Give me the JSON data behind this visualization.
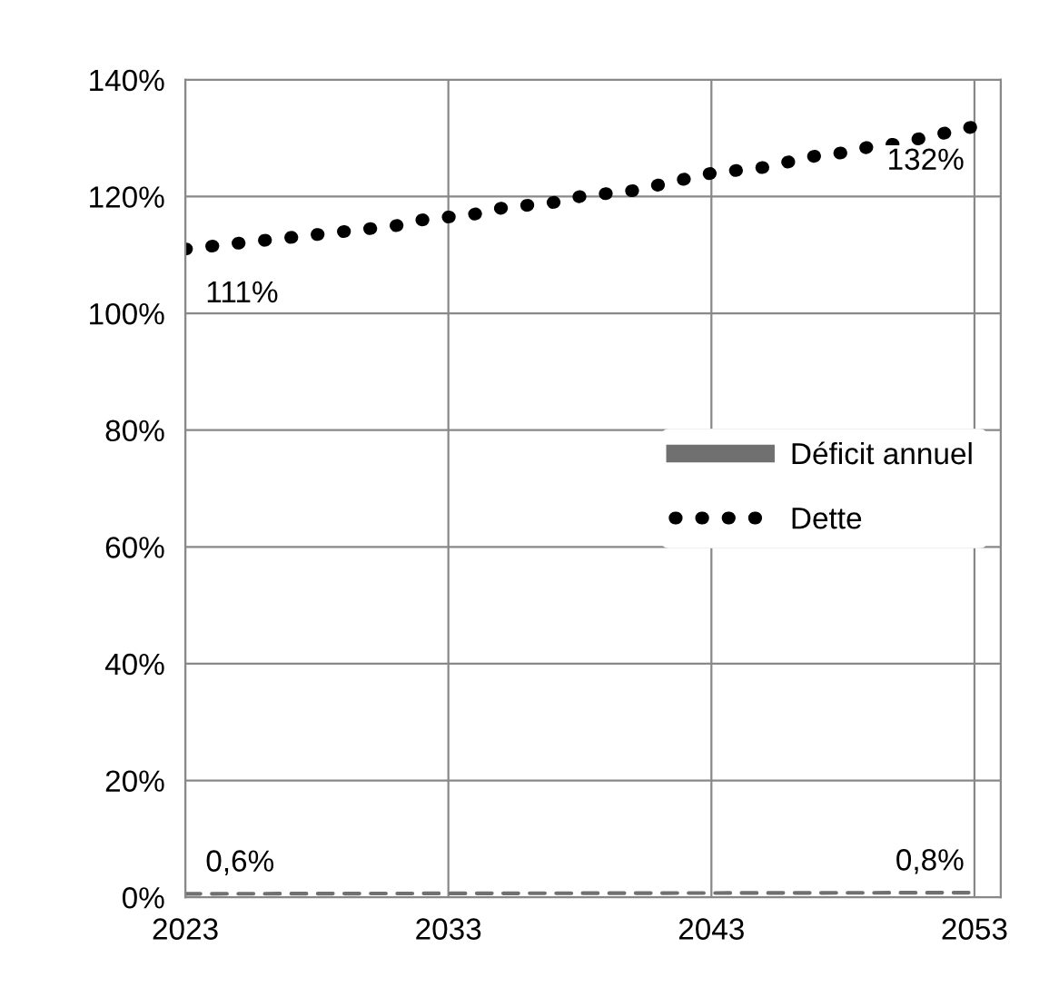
{
  "chart_data": {
    "type": "line",
    "x": [
      2023,
      2024,
      2025,
      2026,
      2027,
      2028,
      2029,
      2030,
      2031,
      2032,
      2033,
      2034,
      2035,
      2036,
      2037,
      2038,
      2039,
      2040,
      2041,
      2042,
      2043,
      2044,
      2045,
      2046,
      2047,
      2048,
      2049,
      2050,
      2051,
      2052,
      2053
    ],
    "series": [
      {
        "name": "Déficit annuel",
        "color": "#707070",
        "line_style": "dashed",
        "x": [
          2023,
          2053
        ],
        "values": [
          0.6,
          0.8
        ],
        "value_labels": [
          "0,6%",
          "0,8%"
        ]
      },
      {
        "name": "Dette",
        "color": "#000000",
        "line_style": "dotted",
        "values": [
          111,
          111.5,
          112,
          112.5,
          113,
          113.5,
          114,
          114.5,
          115,
          116,
          116.5,
          117,
          118,
          118.5,
          119,
          120,
          120.5,
          121,
          122,
          123,
          124,
          124.5,
          125,
          126,
          127,
          127.5,
          128.5,
          129,
          130,
          131,
          132
        ],
        "value_labels": [
          "111%",
          null,
          null,
          null,
          null,
          null,
          null,
          null,
          null,
          null,
          null,
          null,
          null,
          null,
          null,
          null,
          null,
          null,
          null,
          null,
          null,
          null,
          null,
          null,
          null,
          null,
          null,
          null,
          null,
          null,
          "132%"
        ]
      }
    ],
    "xlim": [
      2023,
      2054
    ],
    "xticks": [
      2023,
      2033,
      2043,
      2053
    ],
    "ylim": [
      0,
      140
    ],
    "yticks": [
      {
        "value": 0,
        "label": "0%"
      },
      {
        "value": 20,
        "label": "20%"
      },
      {
        "value": 40,
        "label": "40%"
      },
      {
        "value": 60,
        "label": "60%"
      },
      {
        "value": 80,
        "label": "80%"
      },
      {
        "value": 100,
        "label": "100%"
      },
      {
        "value": 120,
        "label": "120%"
      },
      {
        "value": 140,
        "label": "140%"
      }
    ],
    "grid": true,
    "legend": "center right"
  }
}
